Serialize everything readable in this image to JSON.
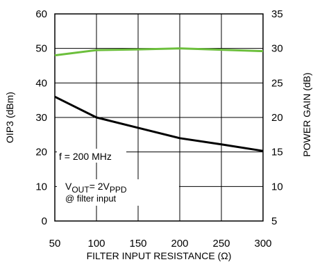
{
  "chart_data": {
    "type": "line",
    "xlabel": "FILTER INPUT RESISTANCE (Ω)",
    "ylabel": "OIP3 (dBm)",
    "y2label": "POWER GAIN (dB)",
    "x_ticks": [
      "50",
      "100",
      "150",
      "200",
      "250",
      "300"
    ],
    "y_ticks": [
      "0",
      "10",
      "20",
      "30",
      "40",
      "50",
      "60"
    ],
    "y2_ticks": [
      "5",
      "10",
      "15",
      "20",
      "25",
      "30",
      "35"
    ],
    "xlim": [
      50,
      300
    ],
    "ylim": [
      0,
      60
    ],
    "y2lim": [
      5,
      35
    ],
    "grid": true,
    "series": [
      {
        "axis": "left",
        "color": "#000000",
        "x": [
          50,
          100,
          150,
          200,
          250,
          300
        ],
        "values": [
          36,
          30,
          27,
          24,
          22.2,
          20.3
        ]
      },
      {
        "axis": "right",
        "color": "#6cbf3c",
        "x": [
          50,
          100,
          150,
          200,
          250,
          300
        ],
        "values": [
          29,
          29.75,
          29.85,
          30,
          29.8,
          29.6
        ]
      }
    ],
    "annotations": {
      "freq": "f = 200 MHz",
      "vout_main": "V",
      "vout_sub1": "OUT",
      "vout_mid": "= 2V",
      "vout_sub2": "PPD",
      "vout_note": "@ filter input"
    }
  }
}
